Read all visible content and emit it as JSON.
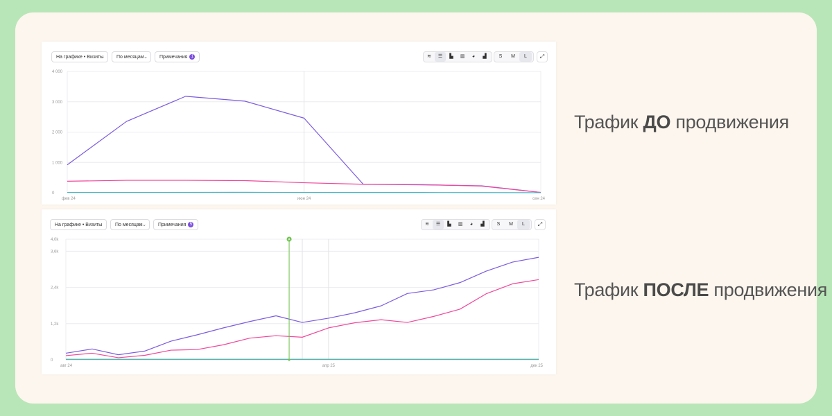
{
  "panels": [
    {
      "toolbar": {
        "metric_dropdown": "На графике • Визиты",
        "period_dropdown": "По месяцам",
        "notes_label": "Примечания",
        "notes_count": "1",
        "chart_type_icons": [
          "lines-icon",
          "stacked-area-icon",
          "bar-chart-icon",
          "stacked-bar-icon",
          "pie-chart-icon",
          "column-chart-icon"
        ],
        "sizes": [
          "S",
          "M",
          "L"
        ],
        "selected_size": "L"
      }
    },
    {
      "toolbar": {
        "metric_dropdown": "На графике • Визиты",
        "period_dropdown": "По месяцам",
        "notes_label": "Примечания",
        "notes_count": "5",
        "chart_type_icons": [
          "lines-icon",
          "stacked-area-icon",
          "bar-chart-icon",
          "stacked-bar-icon",
          "pie-chart-icon",
          "column-chart-icon"
        ],
        "sizes": [
          "S",
          "M",
          "L"
        ],
        "selected_size": "L"
      }
    }
  ],
  "captions": [
    {
      "before": "Трафик ",
      "bold": "ДО",
      "after": " продвижения"
    },
    {
      "before": "Трафик ",
      "bold": "ПОСЛЕ",
      "after": " продвижения"
    }
  ],
  "colors": {
    "purple": "#7b5be0",
    "pink": "#f0479b",
    "teal": "#4fb6c4",
    "olive": "#a8b25a",
    "marker": "#6cc24a"
  },
  "chart_data": [
    {
      "type": "line",
      "ylim": [
        0,
        4000
      ],
      "yticks": [
        0,
        1000,
        2000,
        3000,
        4000
      ],
      "ytick_labels": [
        "0",
        "1 000",
        "2 000",
        "3 000",
        "4 000"
      ],
      "x": [
        0,
        1,
        2,
        3,
        4,
        5,
        6,
        7,
        8
      ],
      "xtick_positions": [
        0,
        4,
        8
      ],
      "xtick_labels": [
        "фев 24",
        "июн 24",
        "сен 24"
      ],
      "vlines": [
        4
      ],
      "series": [
        {
          "color": "#7b5be0",
          "values": [
            920,
            2350,
            3180,
            3020,
            2460,
            280,
            260,
            230,
            10
          ]
        },
        {
          "color": "#f0479b",
          "values": [
            380,
            410,
            410,
            400,
            330,
            280,
            270,
            220,
            10
          ]
        },
        {
          "color": "#4fb6c4",
          "values": [
            10,
            10,
            12,
            15,
            10,
            8,
            8,
            6,
            2
          ]
        }
      ]
    },
    {
      "type": "line",
      "ylim": [
        0,
        4000
      ],
      "yticks": [
        0,
        1200,
        2400,
        3600,
        4000
      ],
      "ytick_labels": [
        "0",
        "1,2k",
        "2,4k",
        "3,6k",
        "4,0k"
      ],
      "x": [
        0,
        1,
        2,
        3,
        4,
        5,
        6,
        7,
        8,
        9,
        10,
        11,
        12,
        13,
        14,
        15,
        16,
        17,
        18
      ],
      "xtick_positions": [
        0,
        10,
        18
      ],
      "xtick_labels": [
        "авг 24",
        "апр 25",
        "дек 25"
      ],
      "vlines": [
        8.5,
        9,
        10
      ],
      "annotation": {
        "x": 8.5,
        "label": "A"
      },
      "series": [
        {
          "color": "#7b5be0",
          "values": [
            220,
            360,
            170,
            290,
            620,
            830,
            1060,
            1270,
            1460,
            1240,
            1380,
            1560,
            1790,
            2200,
            2320,
            2560,
            2940,
            3240,
            3400
          ]
        },
        {
          "color": "#f0479b",
          "values": [
            140,
            220,
            70,
            150,
            320,
            340,
            500,
            720,
            800,
            750,
            1060,
            1230,
            1330,
            1240,
            1440,
            1680,
            2190,
            2520,
            2660
          ]
        },
        {
          "color": "#a8b25a",
          "values": [
            20,
            20,
            20,
            20,
            20,
            20,
            20,
            20,
            20,
            20,
            20,
            20,
            20,
            20,
            20,
            20,
            20,
            20,
            20
          ]
        },
        {
          "color": "#4fb6c4",
          "values": [
            12,
            12,
            12,
            12,
            12,
            12,
            12,
            12,
            12,
            12,
            12,
            12,
            12,
            12,
            12,
            12,
            12,
            12,
            12
          ]
        }
      ]
    }
  ]
}
